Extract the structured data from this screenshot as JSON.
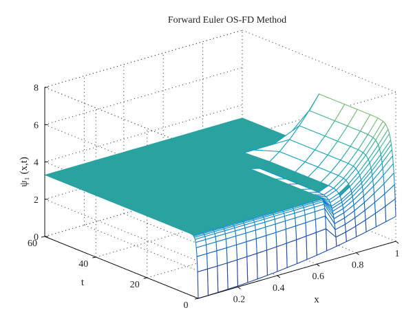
{
  "chart_data": {
    "type": "surface",
    "title": "Forward Euler OS-FD Method",
    "xlabel": "x",
    "ylabel": "t",
    "zlabel": "ψ₁ (x,t)",
    "xlim": [
      0,
      1
    ],
    "ylim": [
      0,
      60
    ],
    "zlim": [
      0,
      8
    ],
    "x_ticks": [
      "0.2",
      "0.4",
      "0.6",
      "0.8",
      "1"
    ],
    "t_ticks": [
      "0",
      "20",
      "40",
      "60"
    ],
    "z_ticks": [
      "0",
      "2",
      "4",
      "6",
      "8"
    ],
    "grid": true,
    "colormap": "parula",
    "plateau_color": "#2aa3a0",
    "x": [
      0,
      0.05,
      0.1,
      0.15,
      0.2,
      0.25,
      0.3,
      0.35,
      0.4,
      0.45,
      0.5,
      0.55,
      0.6,
      0.65,
      0.7,
      0.75,
      0.8,
      0.85,
      0.9,
      0.95,
      1.0
    ],
    "t": [
      0,
      0.25,
      0.5,
      0.75,
      1,
      1.25,
      1.5,
      1.75,
      2,
      2.5,
      3,
      4,
      5,
      7,
      10,
      15,
      20,
      30,
      40,
      50,
      60
    ],
    "z_initial": [
      0.0,
      0.003,
      0.013,
      0.03,
      0.053,
      0.083,
      0.12,
      0.163,
      0.213,
      0.27,
      0.333,
      0.403,
      0.48,
      0.563,
      0.653,
      0.75,
      0.853,
      0.963,
      1.08,
      1.203,
      1.333
    ],
    "z_steady": 3.3,
    "z_peak_x1": 6.5
  }
}
